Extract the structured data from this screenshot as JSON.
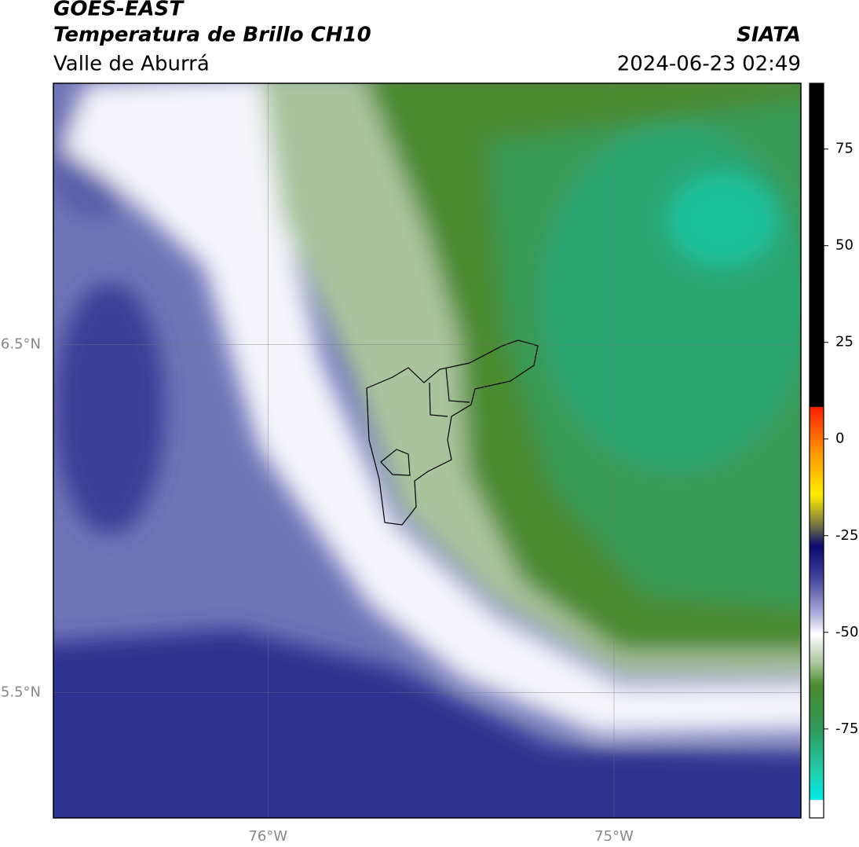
{
  "chart_data": {
    "type": "map",
    "title": "GOES-EAST",
    "subtitle": "Temperatura de Brillo CH10",
    "region": "Valle de Aburrá",
    "source": "SIATA",
    "datetime": "2024-06-23 02:49",
    "xlim": [
      -76.62,
      -74.46
    ],
    "ylim": [
      5.14,
      7.25
    ],
    "xticks": [
      {
        "value": -76,
        "label": "76°W"
      },
      {
        "value": -75,
        "label": "75°W"
      }
    ],
    "yticks": [
      {
        "value": 5.5,
        "label": "5.5°N"
      },
      {
        "value": 6.5,
        "label": "6.5°N"
      }
    ],
    "grid": true,
    "colorbar": {
      "lim": [
        -98,
        92
      ],
      "ticks": [
        -75,
        -50,
        -25,
        0,
        25,
        50,
        75
      ]
    }
  }
}
